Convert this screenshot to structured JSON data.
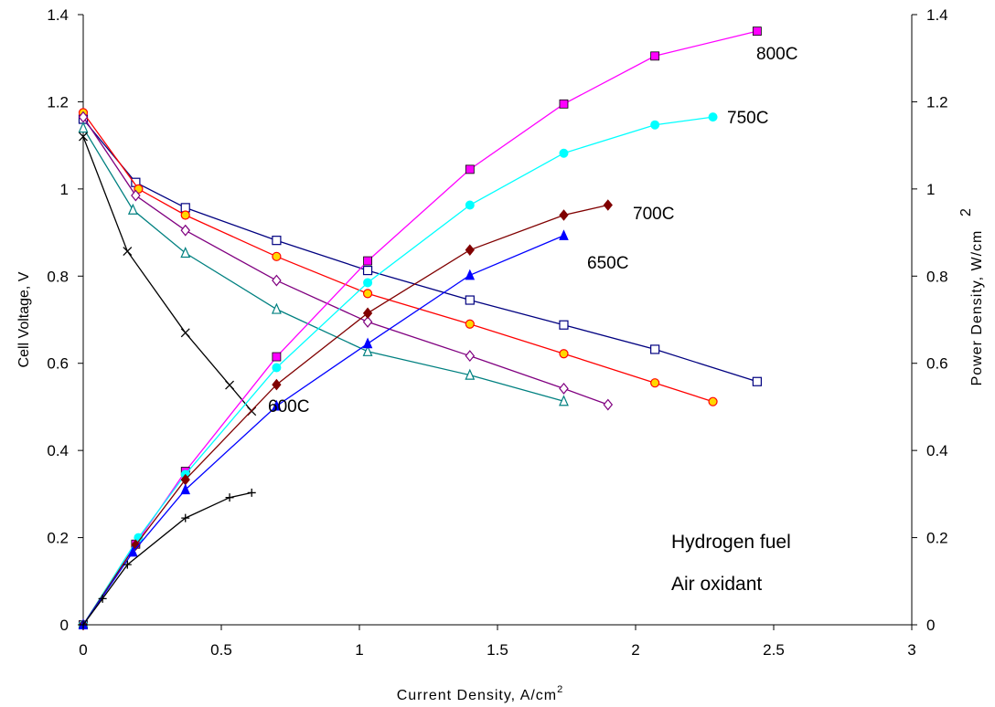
{
  "chart_data": {
    "type": "line",
    "title": "",
    "xlabel": "Current Density, A/cm",
    "xlabel_sup": "2",
    "ylabel_left": "Cell Voltage, V",
    "ylabel_right": "Power Density, W/cm",
    "ylabel_right_sup": "2",
    "xlim": [
      0,
      3
    ],
    "ylim_left": [
      0,
      1.4
    ],
    "ylim_right": [
      0,
      1.4
    ],
    "x_ticks": [
      "0",
      "0.5",
      "1",
      "1.5",
      "2",
      "2.5",
      "3"
    ],
    "y_ticks_left": [
      "0",
      "0.2",
      "0.4",
      "0.6",
      "0.8",
      "1",
      "1.2",
      "1.4"
    ],
    "y_ticks_right": [
      "0",
      "0.2",
      "0.4",
      "0.6",
      "0.8",
      "1",
      "1.2",
      "1.4"
    ],
    "grid": false,
    "temperature_labels": [
      {
        "text": "800C",
        "series": "power-800"
      },
      {
        "text": "750C",
        "series": "power-750"
      },
      {
        "text": "700C",
        "series": "power-700"
      },
      {
        "text": "650C",
        "series": "power-650"
      },
      {
        "text": "600C",
        "series": "power-600"
      }
    ],
    "notes": [
      "Hydrogen fuel",
      "Air oxidant"
    ],
    "series": [
      {
        "id": "voltage-800",
        "kind": "voltage",
        "color": "#000080",
        "marker": "square-open",
        "x": [
          0,
          0.19,
          0.37,
          0.7,
          1.03,
          1.4,
          1.74,
          2.07,
          2.44
        ],
        "y": [
          1.16,
          1.015,
          0.957,
          0.882,
          0.813,
          0.745,
          0.688,
          0.632,
          0.558
        ]
      },
      {
        "id": "voltage-750",
        "kind": "voltage",
        "color": "#FF0000",
        "marker": "circle-yellow",
        "x": [
          0,
          0.2,
          0.37,
          0.7,
          1.03,
          1.4,
          1.74,
          2.07,
          2.28
        ],
        "y": [
          1.175,
          1.0,
          0.94,
          0.845,
          0.76,
          0.69,
          0.622,
          0.555,
          0.512
        ]
      },
      {
        "id": "voltage-700",
        "kind": "voltage",
        "color": "#800080",
        "marker": "diamond-open",
        "x": [
          0,
          0.19,
          0.37,
          0.7,
          1.03,
          1.4,
          1.74,
          1.9
        ],
        "y": [
          1.165,
          0.985,
          0.905,
          0.79,
          0.695,
          0.617,
          0.542,
          0.505
        ]
      },
      {
        "id": "voltage-650",
        "kind": "voltage",
        "color": "#008080",
        "marker": "triangle-open",
        "x": [
          0,
          0.18,
          0.37,
          0.7,
          1.03,
          1.4,
          1.74
        ],
        "y": [
          1.14,
          0.952,
          0.853,
          0.724,
          0.627,
          0.573,
          0.513
        ]
      },
      {
        "id": "voltage-600",
        "kind": "voltage",
        "color": "#000000",
        "marker": "x",
        "x": [
          0,
          0.16,
          0.37,
          0.53,
          0.61
        ],
        "y": [
          1.12,
          0.857,
          0.67,
          0.55,
          0.49
        ]
      },
      {
        "id": "power-800",
        "kind": "power",
        "color": "#FF00FF",
        "marker": "square-filled",
        "x": [
          0,
          0.19,
          0.37,
          0.7,
          1.03,
          1.4,
          1.74,
          2.07,
          2.44
        ],
        "y": [
          0,
          0.185,
          0.352,
          0.615,
          0.835,
          1.045,
          1.195,
          1.305,
          1.362
        ]
      },
      {
        "id": "power-750",
        "kind": "power",
        "color": "#00FFFF",
        "marker": "circle-filled",
        "x": [
          0,
          0.2,
          0.37,
          0.7,
          1.03,
          1.4,
          1.74,
          2.07,
          2.28
        ],
        "y": [
          0,
          0.2,
          0.345,
          0.59,
          0.785,
          0.963,
          1.082,
          1.147,
          1.165
        ]
      },
      {
        "id": "power-700",
        "kind": "power",
        "color": "#800000",
        "marker": "diamond-filled",
        "x": [
          0,
          0.19,
          0.37,
          0.7,
          1.03,
          1.4,
          1.74,
          1.9
        ],
        "y": [
          0,
          0.183,
          0.333,
          0.551,
          0.715,
          0.86,
          0.94,
          0.963
        ]
      },
      {
        "id": "power-650",
        "kind": "power",
        "color": "#0000FF",
        "marker": "triangle-filled",
        "x": [
          0,
          0.18,
          0.37,
          0.7,
          1.03,
          1.4,
          1.74
        ],
        "y": [
          0,
          0.167,
          0.31,
          0.502,
          0.645,
          0.802,
          0.893
        ]
      },
      {
        "id": "power-600",
        "kind": "power",
        "color": "#000000",
        "marker": "plus",
        "x": [
          0,
          0.07,
          0.16,
          0.37,
          0.53,
          0.61
        ],
        "y": [
          0,
          0.06,
          0.138,
          0.245,
          0.292,
          0.303
        ]
      }
    ]
  }
}
